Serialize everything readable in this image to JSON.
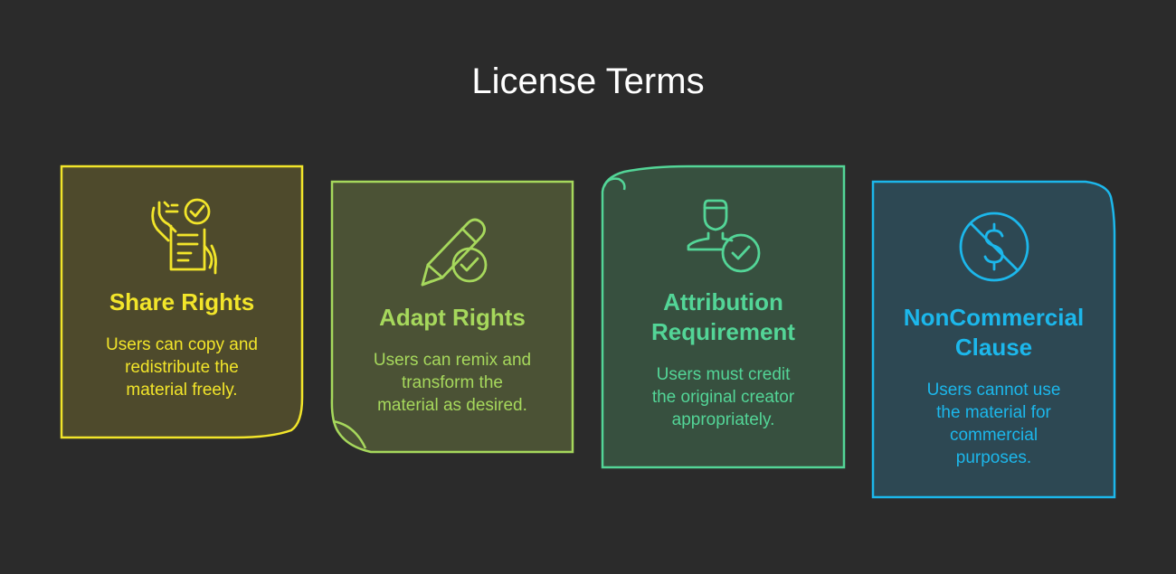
{
  "title": "License Terms",
  "cards": [
    {
      "heading": "Share Rights",
      "desc": [
        "Users can copy and",
        "redistribute the",
        "material freely."
      ],
      "icon": "document-share-icon",
      "color": "#f2e52a"
    },
    {
      "heading": "Adapt Rights",
      "desc": [
        "Users can remix and",
        "transform the",
        "material as desired."
      ],
      "icon": "pencil-check-icon",
      "color": "#a6d85c"
    },
    {
      "heading_lines": [
        "Attribution",
        "Requirement"
      ],
      "desc": [
        "Users must credit",
        "the original creator",
        "appropriately."
      ],
      "icon": "user-check-icon",
      "color": "#53d597"
    },
    {
      "heading_lines": [
        "NonCommercial",
        "Clause"
      ],
      "desc": [
        "Users cannot use",
        "the material for",
        "commercial",
        "purposes."
      ],
      "icon": "no-dollar-icon",
      "color": "#1cb7eb"
    }
  ]
}
